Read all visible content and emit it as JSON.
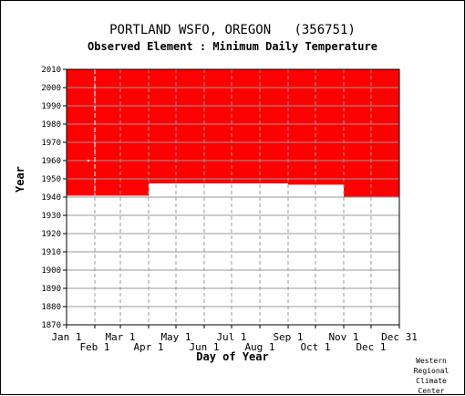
{
  "header": {
    "station": "PORTLAND WSFO, OREGON",
    "station_id": "(356751)",
    "subtitle": "Observed Element : Minimum Daily Temperature"
  },
  "credit": [
    "Western",
    "Regional",
    "Climate",
    "Center"
  ],
  "colors": {
    "coverage": "#ff0000",
    "grid": "#999999",
    "axis": "#000000"
  },
  "chart_data": {
    "type": "area",
    "title": "PORTLAND WSFO, OREGON   (356751)",
    "subtitle": "Observed Element : Minimum Daily Temperature",
    "xlabel": "Day of Year",
    "ylabel": "Year",
    "xlim": [
      1,
      366
    ],
    "ylim": [
      1870,
      2010
    ],
    "y_ticks": [
      1870,
      1880,
      1890,
      1900,
      1910,
      1920,
      1930,
      1940,
      1950,
      1960,
      1970,
      1980,
      1990,
      2000,
      2010
    ],
    "x_ticks_upper": [
      {
        "label": "Jan 1",
        "day": 1
      },
      {
        "label": "Mar 1",
        "day": 60
      },
      {
        "label": "May 1",
        "day": 121
      },
      {
        "label": "Jul 1",
        "day": 182
      },
      {
        "label": "Sep 1",
        "day": 244
      },
      {
        "label": "Nov 1",
        "day": 305
      },
      {
        "label": "Dec 31",
        "day": 366
      }
    ],
    "x_ticks_lower": [
      {
        "label": "Feb 1",
        "day": 32
      },
      {
        "label": "Apr 1",
        "day": 91
      },
      {
        "label": "Jun 1",
        "day": 152
      },
      {
        "label": "Aug 1",
        "day": 213
      },
      {
        "label": "Oct 1",
        "day": 274
      },
      {
        "label": "Dec 1",
        "day": 335
      }
    ],
    "grid": true,
    "coverage_end_year": 2010,
    "coverage_start": [
      {
        "from_day": 1,
        "to_day": 60,
        "start_year": 1940.8
      },
      {
        "from_day": 60,
        "to_day": 91,
        "start_year": 1940.8
      },
      {
        "from_day": 91,
        "to_day": 244,
        "start_year": 1947.5
      },
      {
        "from_day": 244,
        "to_day": 305,
        "start_year": 1946.8
      },
      {
        "from_day": 305,
        "to_day": 366,
        "start_year": 1940
      }
    ],
    "gaps": [
      {
        "day": 32,
        "from_year": 1941,
        "to_year": 2010
      },
      {
        "day": 25,
        "year": 1960
      }
    ]
  }
}
